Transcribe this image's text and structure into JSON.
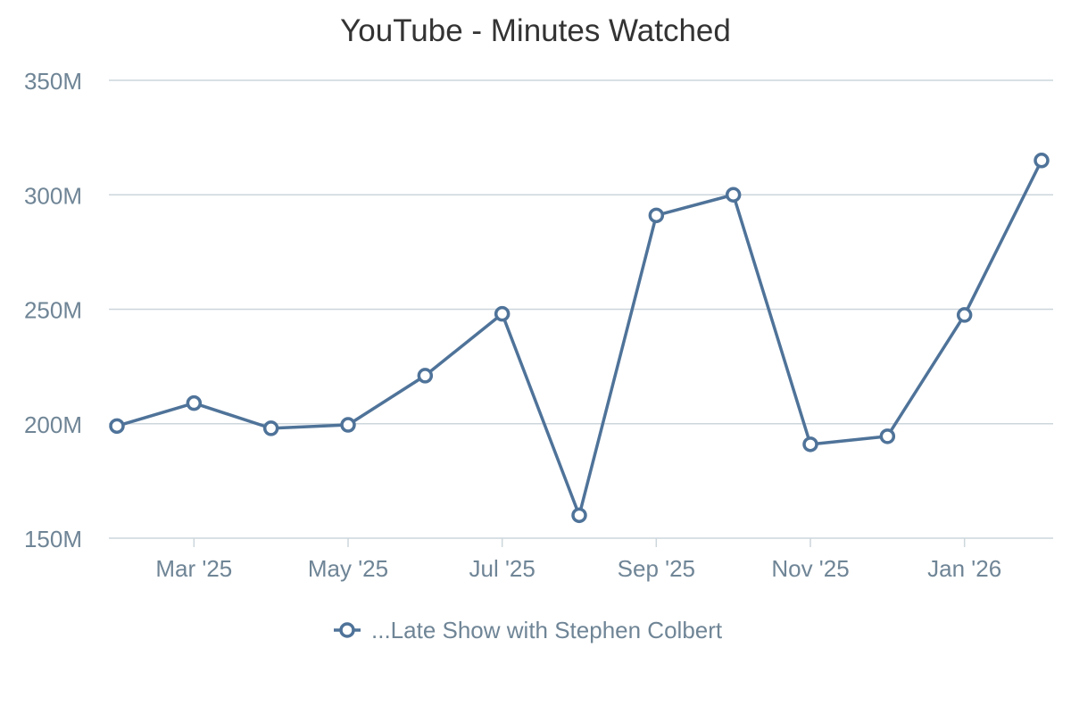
{
  "chart_data": {
    "type": "line",
    "title": "YouTube - Minutes Watched",
    "xlabel": "",
    "ylabel": "",
    "x": [
      "Feb '25",
      "Mar '25",
      "Apr '25",
      "May '25",
      "Jun '25",
      "Jul '25",
      "Aug '25",
      "Sep '25",
      "Oct '25",
      "Nov '25",
      "Dec '25",
      "Jan '26",
      "Feb '26"
    ],
    "x_tick_labels": [
      "Mar '25",
      "May '25",
      "Jul '25",
      "Sep '25",
      "Nov '25",
      "Jan '26"
    ],
    "y_tick_labels": [
      "350M",
      "300M",
      "250M",
      "200M",
      "150M"
    ],
    "ylim": [
      150,
      350
    ],
    "y_unit": "M",
    "grid": true,
    "legend_position": "bottom-center",
    "series": [
      {
        "name": "...Late Show with Stephen Colbert",
        "color": "#4f7399",
        "values": [
          199,
          209,
          198,
          199.5,
          221,
          248,
          160,
          291,
          300,
          191,
          194.5,
          247.5,
          315
        ]
      }
    ]
  }
}
